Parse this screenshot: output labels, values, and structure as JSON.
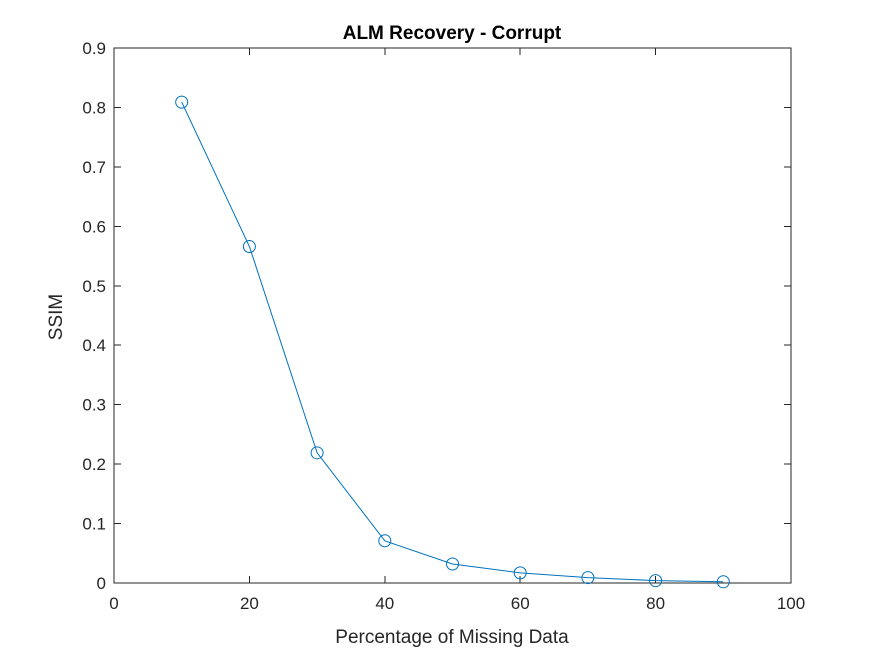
{
  "chart_data": {
    "type": "line",
    "title": "ALM Recovery - Corrupt",
    "xlabel": "Percentage of Missing Data",
    "ylabel": "SSIM",
    "xlim": [
      0,
      100
    ],
    "ylim": [
      0,
      0.9
    ],
    "xticks": [
      "0",
      "20",
      "40",
      "60",
      "80",
      "100"
    ],
    "yticks": [
      "0",
      "0.1",
      "0.2",
      "0.3",
      "0.4",
      "0.5",
      "0.6",
      "0.7",
      "0.8",
      "0.9"
    ],
    "grid": false,
    "marker": "circle",
    "series": [
      {
        "color": "#0072BD",
        "x": [
          10,
          20,
          30,
          40,
          50,
          60,
          70,
          80,
          90
        ],
        "y": [
          0.809,
          0.566,
          0.219,
          0.071,
          0.032,
          0.017,
          0.009,
          0.004,
          0.002
        ]
      }
    ]
  }
}
